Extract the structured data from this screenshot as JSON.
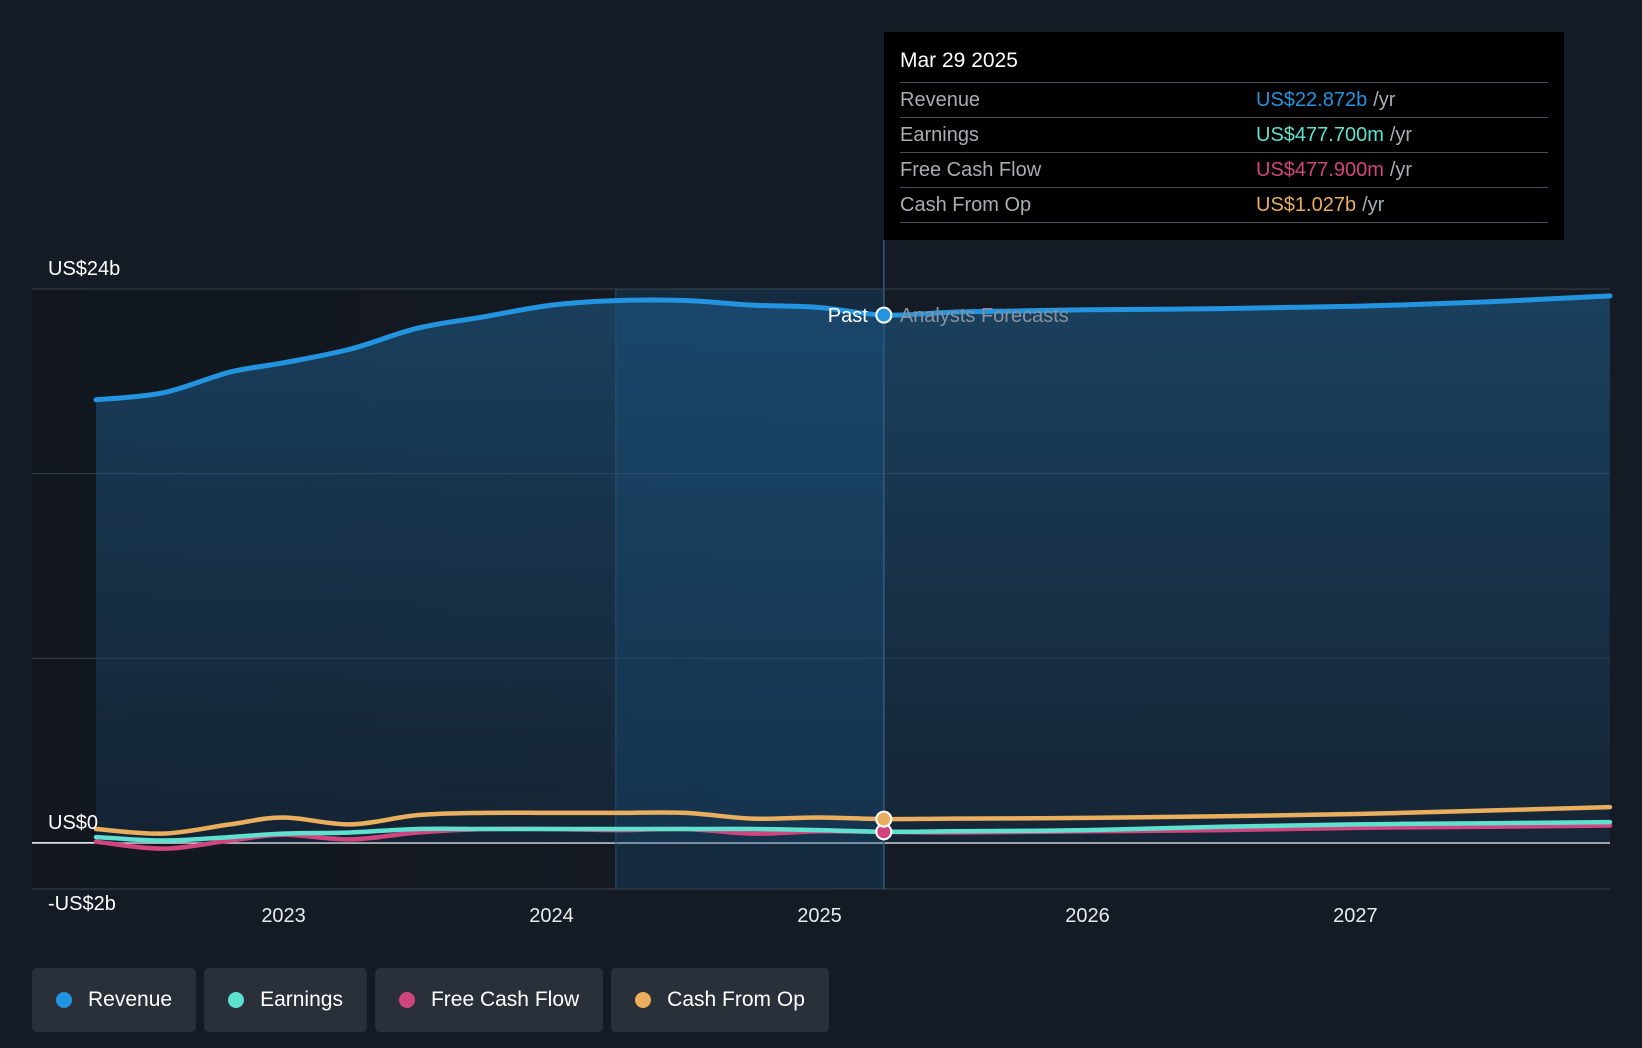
{
  "chart_data": {
    "type": "line",
    "x_domain": [
      2022.3,
      2027.95
    ],
    "ylim": [
      -2,
      24
    ],
    "y_ticks": [
      {
        "label": "US$24b",
        "value": 24
      },
      {
        "label": "US$0",
        "value": 0
      },
      {
        "label": "-US$2b",
        "value": -2
      }
    ],
    "x_ticks": [
      {
        "label": "2023",
        "value": 2023
      },
      {
        "label": "2024",
        "value": 2024
      },
      {
        "label": "2025",
        "value": 2025
      },
      {
        "label": "2026",
        "value": 2026
      },
      {
        "label": "2027",
        "value": 2027
      }
    ],
    "divider_x": 2025.24,
    "highlight_start_x": 2024.24,
    "past_label": "Past",
    "forecast_label": "Analysts Forecasts",
    "series": [
      {
        "name": "Revenue",
        "color": "#2394df",
        "area": true,
        "x": [
          2022.3,
          2022.55,
          2022.8,
          2023.0,
          2023.25,
          2023.5,
          2023.75,
          2024.0,
          2024.25,
          2024.5,
          2024.75,
          2025.0,
          2025.24,
          2025.5,
          2025.75,
          2026.0,
          2026.5,
          2027.0,
          2027.5,
          2027.95
        ],
        "y": [
          19.2,
          19.5,
          20.4,
          20.8,
          21.4,
          22.3,
          22.8,
          23.3,
          23.5,
          23.5,
          23.3,
          23.2,
          22.87,
          23.0,
          23.05,
          23.1,
          23.15,
          23.25,
          23.45,
          23.7
        ]
      },
      {
        "name": "Earnings",
        "color": "#5ee1cf",
        "area": false,
        "x": [
          2022.3,
          2022.55,
          2022.8,
          2023.0,
          2023.25,
          2023.5,
          2023.75,
          2024.0,
          2024.25,
          2024.5,
          2024.75,
          2025.0,
          2025.24,
          2025.5,
          2026.0,
          2026.5,
          2027.0,
          2027.5,
          2027.95
        ],
        "y": [
          0.25,
          0.1,
          0.25,
          0.4,
          0.45,
          0.6,
          0.6,
          0.6,
          0.6,
          0.6,
          0.6,
          0.55,
          0.48,
          0.5,
          0.55,
          0.7,
          0.8,
          0.85,
          0.9
        ]
      },
      {
        "name": "Free Cash Flow",
        "color": "#d1457f",
        "area": false,
        "x": [
          2022.3,
          2022.55,
          2022.8,
          2023.0,
          2023.25,
          2023.5,
          2023.75,
          2024.0,
          2024.25,
          2024.5,
          2024.75,
          2025.0,
          2025.24,
          2025.5,
          2026.0,
          2026.5,
          2027.0,
          2027.5,
          2027.95
        ],
        "y": [
          0.05,
          -0.25,
          0.1,
          0.35,
          0.15,
          0.45,
          0.6,
          0.6,
          0.55,
          0.6,
          0.4,
          0.5,
          0.48,
          0.45,
          0.5,
          0.55,
          0.65,
          0.7,
          0.75
        ]
      },
      {
        "name": "Cash From Op",
        "color": "#e9ae5e",
        "area": false,
        "x": [
          2022.3,
          2022.55,
          2022.8,
          2023.0,
          2023.25,
          2023.5,
          2023.75,
          2024.0,
          2024.25,
          2024.5,
          2024.75,
          2025.0,
          2025.24,
          2025.5,
          2026.0,
          2026.5,
          2027.0,
          2027.5,
          2027.95
        ],
        "y": [
          0.6,
          0.4,
          0.8,
          1.1,
          0.8,
          1.2,
          1.3,
          1.3,
          1.3,
          1.3,
          1.05,
          1.1,
          1.03,
          1.05,
          1.08,
          1.15,
          1.25,
          1.4,
          1.55
        ]
      }
    ]
  },
  "tooltip": {
    "date": "Mar 29 2025",
    "rows": [
      {
        "label": "Revenue",
        "value": "US$22.872b",
        "unit": "/yr",
        "color": "#2394df"
      },
      {
        "label": "Earnings",
        "value": "US$477.700m",
        "unit": "/yr",
        "color": "#5ee1cf"
      },
      {
        "label": "Free Cash Flow",
        "value": "US$477.900m",
        "unit": "/yr",
        "color": "#d1457f"
      },
      {
        "label": "Cash From Op",
        "value": "US$1.027b",
        "unit": "/yr",
        "color": "#e9ae5e"
      }
    ]
  },
  "legend": [
    {
      "label": "Revenue",
      "color": "#2394df"
    },
    {
      "label": "Earnings",
      "color": "#5ee1cf"
    },
    {
      "label": "Free Cash Flow",
      "color": "#d1457f"
    },
    {
      "label": "Cash From Op",
      "color": "#e9ae5e"
    }
  ]
}
